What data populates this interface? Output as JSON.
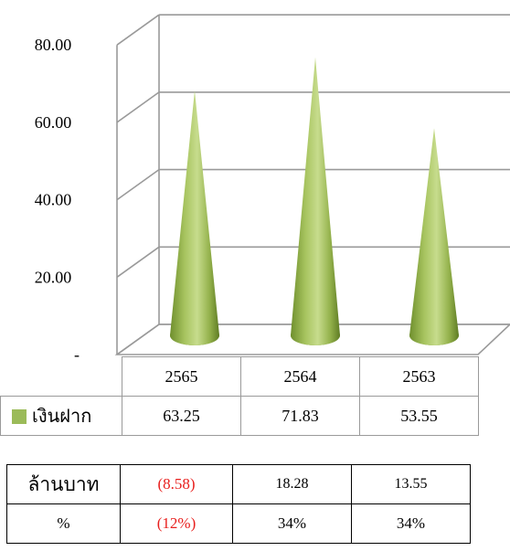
{
  "chart_data": {
    "type": "bar",
    "shape": "3d-cone",
    "categories": [
      "2565",
      "2564",
      "2563"
    ],
    "series": [
      {
        "name": "เงินฝาก",
        "values": [
          63.25,
          71.83,
          53.55
        ],
        "color": "#9bbb59"
      }
    ],
    "ylim": [
      0,
      80
    ],
    "yticks": [
      "-",
      "20.00",
      "40.00",
      "60.00",
      "80.00"
    ],
    "grid": true,
    "legend": "in data table"
  },
  "data_table": {
    "headers": [
      "2565",
      "2564",
      "2563"
    ],
    "series_label": "เงินฝาก",
    "values": [
      "63.25",
      "71.83",
      "53.55"
    ]
  },
  "change_table": {
    "rows": [
      {
        "label": "ล้านบาท",
        "cells": [
          "(8.58)",
          "18.28",
          "13.55"
        ]
      },
      {
        "label": "%",
        "cells": [
          "(12%)",
          "34%",
          "34%"
        ]
      }
    ],
    "negative_color": "#e8201e"
  }
}
